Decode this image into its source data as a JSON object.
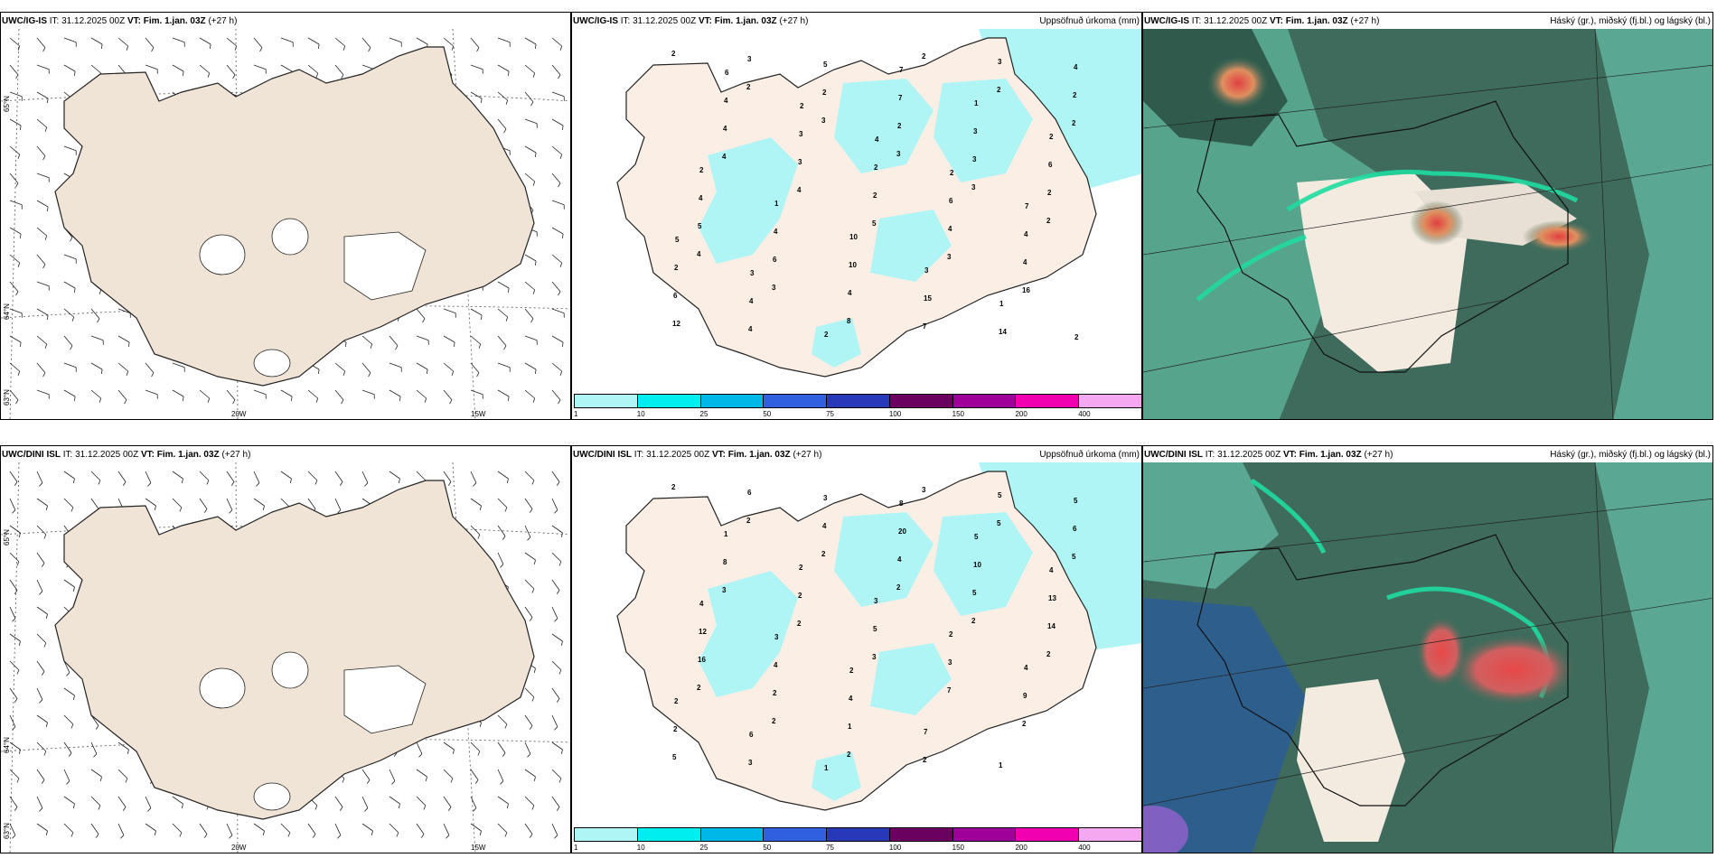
{
  "rows": [
    {
      "model": "UWC/IG-IS",
      "it_label": "IT:",
      "it_value": "31.12.2025 00Z",
      "vt_label": "VT:",
      "vt_value": "Fim. 1.jan. 03Z",
      "lead": "(+27 h)",
      "precip_title": "Uppsöfnuð úrkoma (mm)",
      "cloud_title": "Háský (gr.), miðský (fj.bl.) og lágský (bl.)",
      "lat_labels": [
        "65°N",
        "64°N",
        "63°N"
      ],
      "lon_labels": [
        "20W",
        "15W"
      ],
      "precip_values": [
        "2",
        "2",
        "3",
        "3",
        "3",
        "2",
        "4",
        "3",
        "8",
        "2",
        "2",
        "2",
        "4",
        "4",
        "5",
        "3",
        "16",
        "12",
        "3",
        "2",
        "2",
        "3",
        "2",
        "5",
        "6",
        "4",
        "7",
        "3",
        "2",
        "4",
        "3",
        "2",
        "4",
        "4",
        "6",
        "4",
        "5",
        "7",
        "3",
        "6",
        "4",
        "4",
        "10",
        "15",
        "14",
        "4",
        "4",
        "3",
        "2",
        "6",
        "4",
        "2",
        "4",
        "2",
        "7",
        "1",
        "2",
        "2",
        "1",
        "10",
        "3",
        "1",
        "2",
        "6",
        "2",
        "4",
        "2",
        "7",
        "5",
        "3"
      ]
    },
    {
      "model": "UWC/DINI ISL",
      "it_label": "IT:",
      "it_value": "31.12.2025 00Z",
      "vt_label": "VT:",
      "vt_value": "Fim. 1.jan. 03Z",
      "lead": "(+27 h)",
      "precip_title": "Uppsöfnuð úrkoma (mm)",
      "cloud_title": "Háský (gr.), miðský (fj.bl.) og lágský (bl.)",
      "lat_labels": [
        "65°N",
        "64°N",
        "63°N"
      ],
      "lon_labels": [
        "20W",
        "15W"
      ],
      "precip_values": [
        "2",
        "2",
        "2",
        "2",
        "2",
        "2",
        "2",
        "2",
        "2",
        "3",
        "5",
        "5",
        "3",
        "2",
        "3",
        "7",
        "2",
        "5",
        "6",
        "4",
        "4",
        "5",
        "14",
        "16",
        "2",
        "1",
        "2",
        "5",
        "6",
        "8",
        "2",
        "5",
        "3",
        "9",
        "2",
        "3",
        "3",
        "20",
        "10",
        "13",
        "12",
        "4",
        "4",
        "7",
        "1",
        "5",
        "1",
        "2",
        "3",
        "2",
        "4",
        "2",
        "6",
        "1",
        "8",
        "5",
        "4",
        "4",
        "3",
        "2"
      ]
    }
  ],
  "colorbar": {
    "ticks": [
      "1",
      "10",
      "25",
      "50",
      "75",
      "100",
      "150",
      "200",
      "400"
    ],
    "colors": [
      "#b0f5f5",
      "#00eef0",
      "#00b8e8",
      "#3060e0",
      "#2838b8",
      "#6a0060",
      "#a0009a",
      "#f000b0",
      "#f5a8f0"
    ]
  }
}
